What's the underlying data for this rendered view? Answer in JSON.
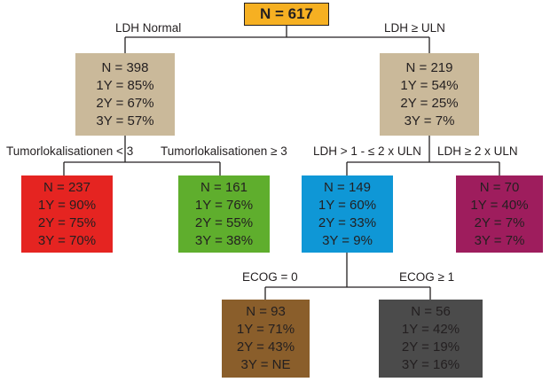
{
  "colors": {
    "root": "#f6b022",
    "tan": "#cab99a",
    "red": "#e52421",
    "green": "#5fae2d",
    "blue": "#0f97d6",
    "magenta": "#9e1d5d",
    "brown": "#8a5e2b",
    "gray": "#4b4b4b",
    "edge": "#231f20"
  },
  "root": {
    "label": "N = 617"
  },
  "nodes": {
    "ldh_normal": {
      "n": "N = 398",
      "y1": "1Y = 85%",
      "y2": "2Y = 67%",
      "y3": "3Y = 57%"
    },
    "ldh_high": {
      "n": "N = 219",
      "y1": "1Y = 54%",
      "y2": "2Y = 25%",
      "y3": "3Y = 7%"
    },
    "tumor_lt3": {
      "n": "N = 237",
      "y1": "1Y = 90%",
      "y2": "2Y = 75%",
      "y3": "3Y = 70%"
    },
    "tumor_ge3": {
      "n": "N = 161",
      "y1": "1Y = 76%",
      "y2": "2Y = 55%",
      "y3": "3Y = 38%"
    },
    "ldh_1_2": {
      "n": "N = 149",
      "y1": "1Y = 60%",
      "y2": "2Y = 33%",
      "y3": "3Y = 9%"
    },
    "ldh_ge2": {
      "n": "N = 70",
      "y1": "1Y = 40%",
      "y2": "2Y = 7%",
      "y3": "3Y = 7%"
    },
    "ecog0": {
      "n": "N = 93",
      "y1": "1Y = 71%",
      "y2": "2Y = 43%",
      "y3": "3Y = NE"
    },
    "ecog_ge1": {
      "n": "N = 56",
      "y1": "1Y = 42%",
      "y2": "2Y = 19%",
      "y3": "3Y = 16%"
    }
  },
  "branch_labels": {
    "ldh_normal": "LDH Normal",
    "ldh_uln": "LDH ≥ ULN",
    "tumor_lt3": "Tumorlokalisationen < 3",
    "tumor_ge3": "Tumorlokalisationen ≥ 3",
    "ldh_1_2": "LDH > 1 - ≤ 2 x ULN",
    "ldh_ge2": "LDH ≥ 2 x ULN",
    "ecog0": "ECOG = 0",
    "ecog_ge1": "ECOG ≥ 1"
  }
}
